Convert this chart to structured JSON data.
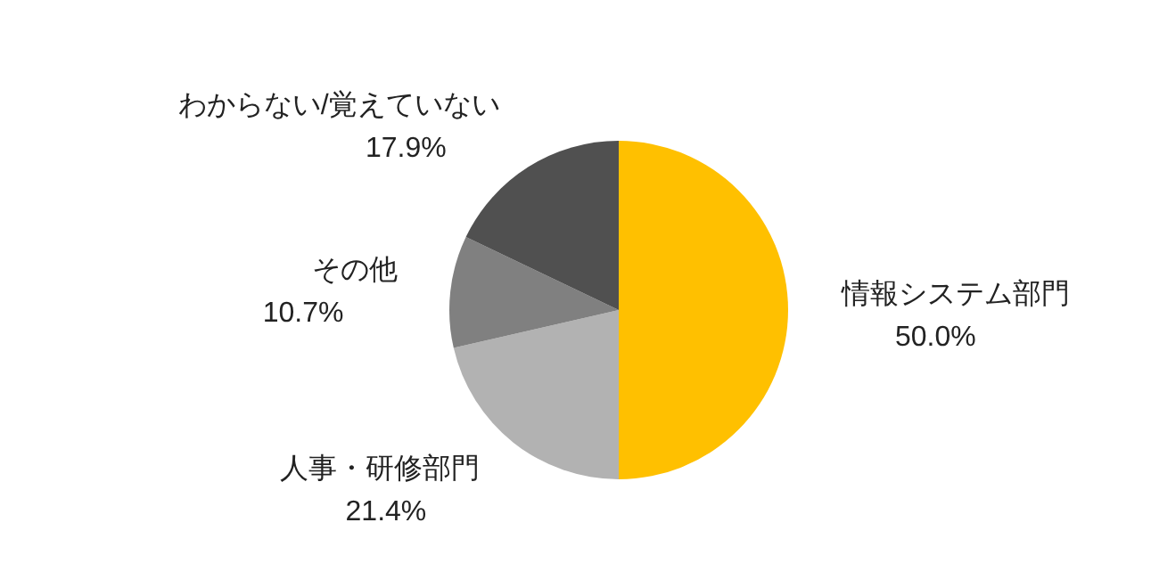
{
  "chart_data": {
    "type": "pie",
    "categories": [
      "情報システム部門",
      "人事・研修部門",
      "その他",
      "わからない/覚えていない"
    ],
    "values": [
      50.0,
      21.4,
      10.7,
      17.9
    ],
    "colors": [
      "#ffc000",
      "#b2b2b2",
      "#808080",
      "#505050"
    ],
    "value_labels": [
      "50.0%",
      "21.4%",
      "10.7%",
      "17.9%"
    ],
    "legend": false
  }
}
